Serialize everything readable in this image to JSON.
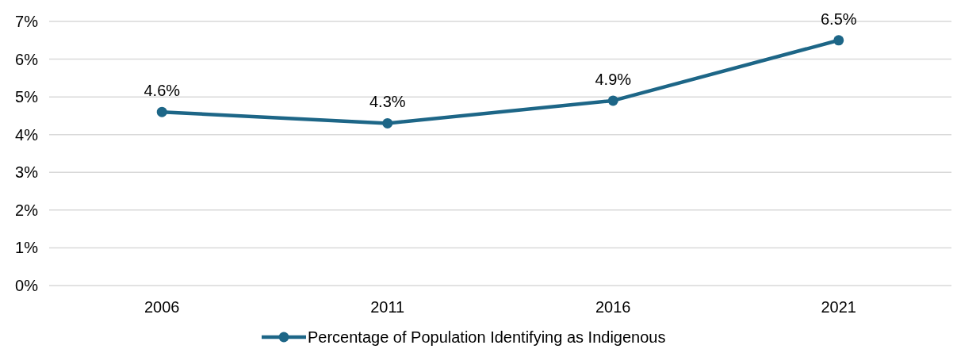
{
  "chart_data": {
    "type": "line",
    "categories": [
      "2006",
      "2011",
      "2016",
      "2021"
    ],
    "series": [
      {
        "name": "Percentage of Population Identifying as Indigenous",
        "color": "#1d6687",
        "values": [
          4.6,
          4.3,
          4.9,
          6.5
        ],
        "value_labels": [
          "4.6%",
          "4.3%",
          "4.9%",
          "6.5%"
        ]
      }
    ],
    "ylim": [
      0,
      7
    ],
    "yticks": [
      {
        "value": 0,
        "label": "0%"
      },
      {
        "value": 1,
        "label": "1%"
      },
      {
        "value": 2,
        "label": "2%"
      },
      {
        "value": 3,
        "label": "3%"
      },
      {
        "value": 4,
        "label": "4%"
      },
      {
        "value": 5,
        "label": "5%"
      },
      {
        "value": 6,
        "label": "6%"
      },
      {
        "value": 7,
        "label": "7%"
      }
    ],
    "grid": "y",
    "legend": "bottom",
    "marker": "circle",
    "line_style": "solid"
  }
}
